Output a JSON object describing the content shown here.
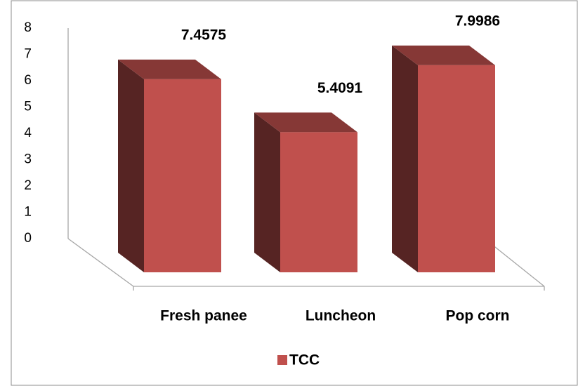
{
  "chart_data": {
    "type": "bar3d",
    "categories": [
      "Fresh panee",
      "Luncheon",
      "Pop corn"
    ],
    "series": [
      {
        "name": "TCC",
        "color": "#c0504d",
        "values": [
          7.4575,
          5.4091,
          7.9986
        ]
      }
    ],
    "ylim": [
      0,
      8
    ],
    "yticks": [
      0,
      1,
      2,
      3,
      4,
      5,
      6,
      7,
      8
    ],
    "legend": "bottom"
  }
}
